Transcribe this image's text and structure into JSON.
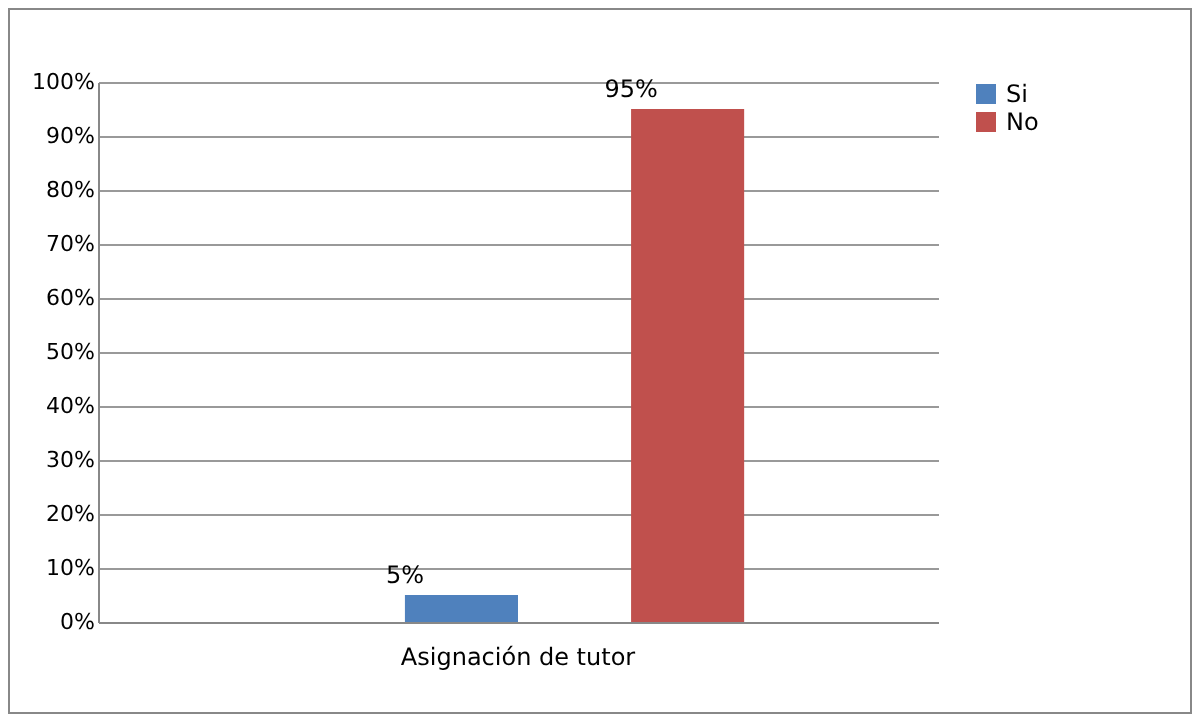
{
  "chart_data": {
    "type": "bar",
    "categories": [
      "Asignación de tutor"
    ],
    "series": [
      {
        "name": "Si",
        "color": "#4f81bd",
        "values": [
          5
        ],
        "value_labels": [
          "5%"
        ]
      },
      {
        "name": "No",
        "color": "#c0504d",
        "values": [
          95
        ],
        "value_labels": [
          "95%"
        ]
      }
    ],
    "ylim": [
      0,
      100
    ],
    "yticks": [
      {
        "value": 0,
        "label": "0%"
      },
      {
        "value": 10,
        "label": "10%"
      },
      {
        "value": 20,
        "label": "20%"
      },
      {
        "value": 30,
        "label": "30%"
      },
      {
        "value": 40,
        "label": "40%"
      },
      {
        "value": 50,
        "label": "50%"
      },
      {
        "value": 60,
        "label": "60%"
      },
      {
        "value": 70,
        "label": "70%"
      },
      {
        "value": 80,
        "label": "80%"
      },
      {
        "value": 90,
        "label": "90%"
      },
      {
        "value": 100,
        "label": "100%"
      }
    ],
    "grid": true,
    "legend": "right"
  }
}
